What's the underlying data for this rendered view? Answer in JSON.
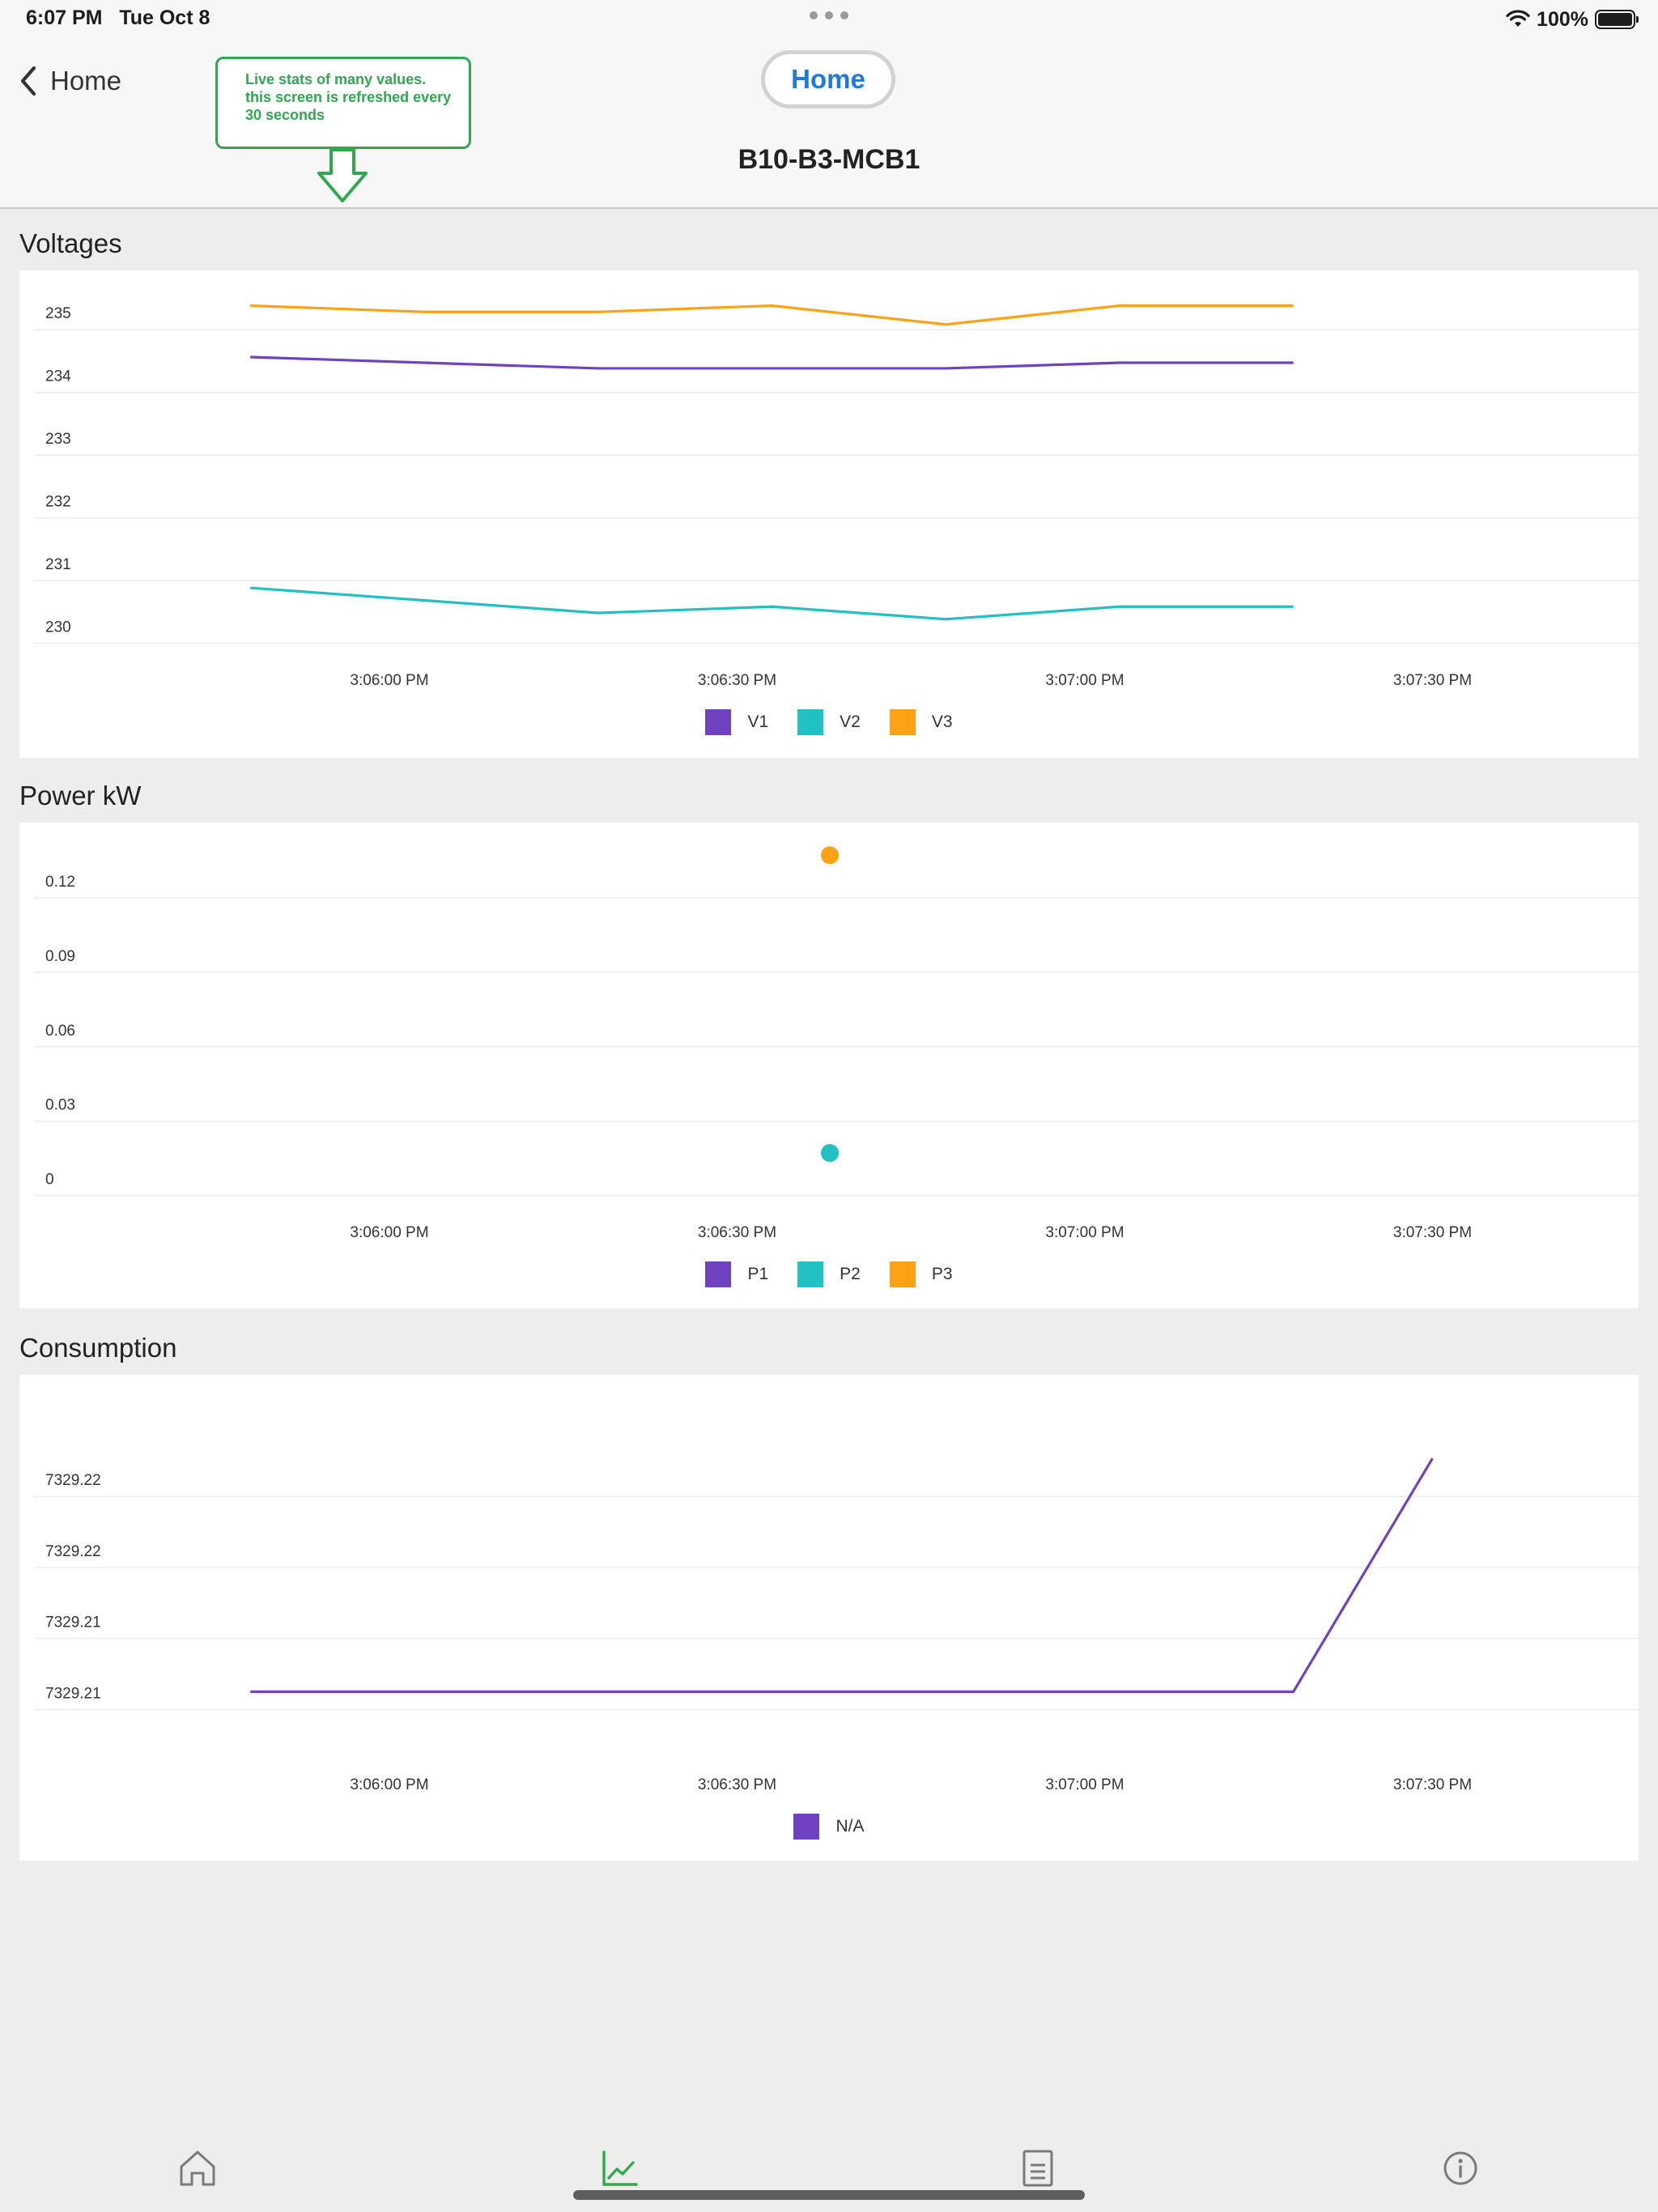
{
  "status_bar": {
    "time": "6:07 PM",
    "date": "Tue Oct 8",
    "battery_text": "100%",
    "battery_level": 1.0
  },
  "nav": {
    "back_label": "Home",
    "home_button_label": "Home",
    "title": "B10-B3-MCB1",
    "annotation": "Live stats of many values. this screen is refreshed every 30 seconds"
  },
  "colors": {
    "series_1": "#6f42c1",
    "series_2": "#1fc1c3",
    "series_3": "#ffa216",
    "accent": "#1f7ae0",
    "annotation": "#2fa84f",
    "active_tab": "#2fa84f",
    "inactive_tab": "#7a7a7a"
  },
  "tabs": [
    {
      "icon": "home-icon",
      "active": false
    },
    {
      "icon": "chart-icon",
      "active": true
    },
    {
      "icon": "document-icon",
      "active": false
    },
    {
      "icon": "info-icon",
      "active": false
    }
  ],
  "chart_data": [
    {
      "id": "voltages",
      "title": "Voltages",
      "type": "line",
      "ylim": [
        229.8,
        235.3
      ],
      "yticks": [
        {
          "value": 230,
          "label": "230"
        },
        {
          "value": 231,
          "label": "231"
        },
        {
          "value": 232,
          "label": "232"
        },
        {
          "value": 233,
          "label": "233"
        },
        {
          "value": 234,
          "label": "234"
        },
        {
          "value": 235,
          "label": "235"
        }
      ],
      "x_range_seconds": [
        "3:05:38 PM",
        "3:07:38 PM"
      ],
      "x": [
        "3:05:48 PM",
        "3:06:03 PM",
        "3:06:18 PM",
        "3:06:33 PM",
        "3:06:48 PM",
        "3:07:03 PM",
        "3:07:18 PM"
      ],
      "xticks": [
        "3:06:00 PM",
        "3:06:30 PM",
        "3:07:00 PM",
        "3:07:30 PM"
      ],
      "series": [
        {
          "name": "V1",
          "color": "#6f42c1",
          "values": [
            234.28,
            234.19,
            234.1,
            234.1,
            234.1,
            234.19,
            234.19
          ]
        },
        {
          "name": "V2",
          "color": "#1fc1c3",
          "values": [
            230.6,
            230.4,
            230.2,
            230.3,
            230.1,
            230.3,
            230.3
          ]
        },
        {
          "name": "V3",
          "color": "#ffa216",
          "values": [
            235.1,
            235.0,
            235.0,
            235.1,
            234.8,
            235.1,
            235.1
          ]
        }
      ],
      "grid": true,
      "legend": "bottom"
    },
    {
      "id": "power",
      "title": "Power kW",
      "type": "scatter",
      "ylim": [
        -0.005,
        0.134
      ],
      "yticks": [
        {
          "value": 0,
          "label": "0"
        },
        {
          "value": 0.03,
          "label": "0.03"
        },
        {
          "value": 0.06,
          "label": "0.06"
        },
        {
          "value": 0.09,
          "label": "0.09"
        },
        {
          "value": 0.12,
          "label": "0.12"
        }
      ],
      "x_range_seconds": [
        "3:05:38 PM",
        "3:07:38 PM"
      ],
      "xticks": [
        "3:06:00 PM",
        "3:06:30 PM",
        "3:07:00 PM",
        "3:07:30 PM"
      ],
      "series": [
        {
          "name": "P1",
          "color": "#6f42c1",
          "points": []
        },
        {
          "name": "P2",
          "color": "#1fc1c3",
          "points": [
            {
              "x": "3:06:38 PM",
              "y": 0.01
            }
          ]
        },
        {
          "name": "P3",
          "color": "#ffa216",
          "points": [
            {
              "x": "3:06:38 PM",
              "y": 0.13
            }
          ]
        }
      ],
      "grid": true,
      "legend": "bottom"
    },
    {
      "id": "consumption",
      "title": "Consumption",
      "type": "line",
      "ylim": [
        7329.2075,
        7329.2245
      ],
      "yticks": [
        {
          "value": 7329.21,
          "label": "7329.21"
        },
        {
          "value": 7329.2135,
          "label": "7329.21"
        },
        {
          "value": 7329.217,
          "label": "7329.22"
        },
        {
          "value": 7329.2205,
          "label": "7329.22"
        }
      ],
      "x_range_seconds": [
        "3:05:38 PM",
        "3:07:38 PM"
      ],
      "x": [
        "3:05:48 PM",
        "3:07:18 PM",
        "3:07:30 PM"
      ],
      "xticks": [
        "3:06:00 PM",
        "3:06:30 PM",
        "3:07:00 PM",
        "3:07:30 PM"
      ],
      "series": [
        {
          "name": "N/A",
          "color": "#6f42c1",
          "values": [
            7329.21,
            7329.21,
            7329.2215
          ]
        }
      ],
      "grid": true,
      "legend": "bottom"
    }
  ]
}
